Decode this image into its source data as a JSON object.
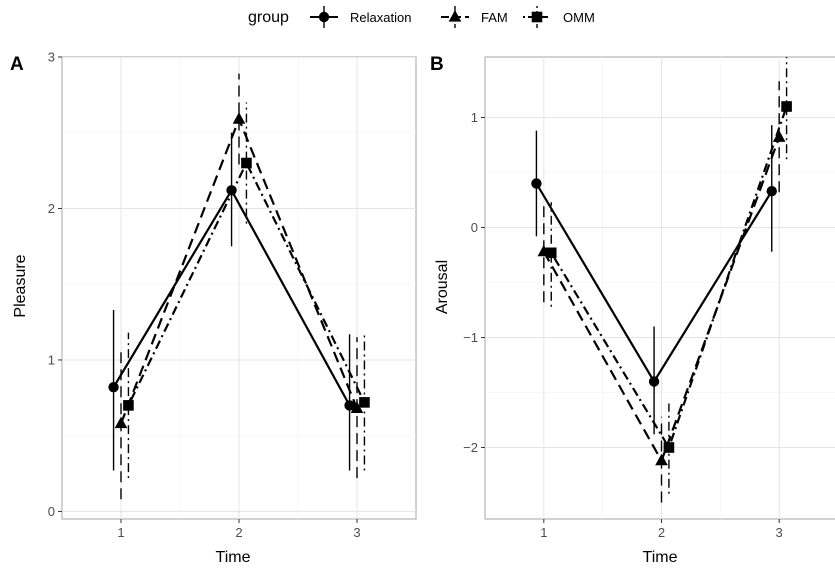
{
  "legend": {
    "title": "group",
    "items": [
      {
        "label": "Relaxation",
        "shape": "circle",
        "dash": "solid"
      },
      {
        "label": "FAM",
        "shape": "triangle",
        "dash": "longdash"
      },
      {
        "label": "OMM",
        "shape": "square",
        "dash": "dotdash"
      }
    ]
  },
  "colors": {
    "ink": "#000000",
    "grid": "#e5e5e5",
    "border": "#b3b3b3",
    "tick_text": "#4d4d4d"
  },
  "chart_data": [
    {
      "type": "line",
      "panel": "A",
      "title": "",
      "xlabel": "Time",
      "ylabel": "Pleasure",
      "x": [
        1,
        2,
        3
      ],
      "x_ticks": [
        "1",
        "2",
        "3"
      ],
      "xlim": [
        0.5,
        3.5
      ],
      "ylim": [
        -0.05,
        3.0
      ],
      "y_ticks": [
        "0",
        "1",
        "2",
        "3"
      ],
      "grid": true,
      "error_bars": true,
      "series": [
        {
          "name": "Relaxation",
          "values": [
            0.82,
            2.12,
            0.7
          ],
          "lower": [
            0.27,
            1.75,
            0.27
          ],
          "upper": [
            1.33,
            2.5,
            1.17
          ]
        },
        {
          "name": "FAM",
          "values": [
            0.58,
            2.59,
            0.68
          ],
          "lower": [
            0.08,
            2.29,
            0.22
          ],
          "upper": [
            1.07,
            2.89,
            1.15
          ]
        },
        {
          "name": "OMM",
          "values": [
            0.7,
            2.3,
            0.72
          ],
          "lower": [
            0.22,
            1.9,
            0.27
          ],
          "upper": [
            1.18,
            2.7,
            1.17
          ]
        }
      ]
    },
    {
      "type": "line",
      "panel": "B",
      "title": "",
      "xlabel": "Time",
      "ylabel": "Arousal",
      "x": [
        1,
        2,
        3
      ],
      "x_ticks": [
        "1",
        "2",
        "3"
      ],
      "xlim": [
        0.5,
        3.5
      ],
      "ylim": [
        -2.65,
        1.55
      ],
      "y_ticks": [
        "−2",
        "−1",
        "0",
        "1"
      ],
      "grid": true,
      "error_bars": true,
      "series": [
        {
          "name": "Relaxation",
          "values": [
            0.4,
            -1.4,
            0.33
          ],
          "lower": [
            -0.08,
            -1.88,
            -0.22
          ],
          "upper": [
            0.88,
            -0.9,
            0.93
          ]
        },
        {
          "name": "FAM",
          "values": [
            -0.22,
            -2.12,
            0.82
          ],
          "lower": [
            -0.68,
            -2.5,
            0.32
          ],
          "upper": [
            0.22,
            -1.72,
            1.33
          ]
        },
        {
          "name": "OMM",
          "values": [
            -0.23,
            -2.0,
            1.1
          ],
          "lower": [
            -0.72,
            -2.42,
            0.62
          ],
          "upper": [
            0.23,
            -1.6,
            1.55
          ]
        }
      ]
    }
  ]
}
